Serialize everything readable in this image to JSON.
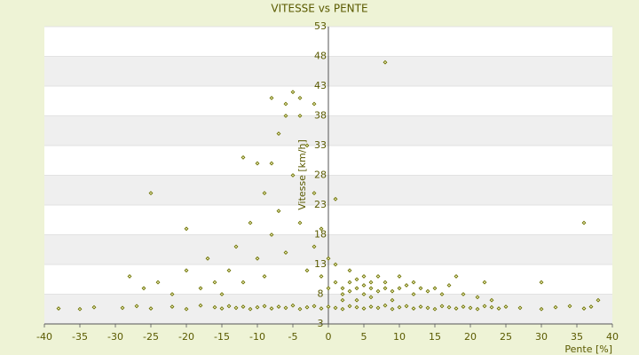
{
  "chart_data": {
    "type": "scatter",
    "title": "VITESSE vs PENTE",
    "x_label": "Pente [%]",
    "y_label": "Vitesse [km/h]",
    "xlim": [
      -40,
      40
    ],
    "ylim": [
      3,
      53
    ],
    "xticks": [
      -40,
      -35,
      -30,
      -25,
      -20,
      -15,
      -10,
      -5,
      0,
      5,
      10,
      15,
      20,
      25,
      30,
      35,
      40
    ],
    "yticks": [
      3,
      8,
      13,
      18,
      23,
      28,
      33,
      38,
      43,
      48,
      53
    ],
    "grid": true,
    "color": "#6b7000",
    "x": [
      -38,
      -35,
      -33,
      -29,
      -27,
      -25,
      -22,
      -20,
      -18,
      -16,
      -15,
      -14,
      -13,
      -12,
      -11,
      -10,
      -9,
      -8,
      -7,
      -6,
      -5,
      -4,
      -3,
      -2,
      -1,
      0,
      1,
      2,
      3,
      4,
      5,
      6,
      7,
      8,
      9,
      10,
      11,
      12,
      13,
      14,
      15,
      16,
      17,
      18,
      19,
      20,
      21,
      22,
      23,
      24,
      25,
      27,
      30,
      32,
      34,
      36,
      37,
      -28,
      -26,
      -24,
      -22,
      -20,
      -18,
      -17,
      -16,
      -15,
      -14,
      -13,
      -12,
      -11,
      -10,
      -9,
      -9,
      -8,
      -8,
      -7,
      -7,
      -6,
      -6,
      -5,
      -5,
      -4,
      -4,
      -3,
      -3,
      -2,
      -2,
      -1,
      -1,
      0,
      0,
      -25,
      -20,
      -12,
      -8,
      -6,
      -4,
      -10,
      -2,
      1,
      8,
      36,
      30,
      38,
      22,
      18,
      1,
      2,
      2,
      3,
      3,
      4,
      4,
      5,
      5,
      6,
      6,
      7,
      7,
      8,
      8,
      9,
      10,
      11,
      12,
      13,
      14,
      15,
      16,
      17,
      19,
      21,
      23,
      3,
      5,
      10,
      1,
      2,
      4,
      6,
      9,
      12
    ],
    "values": [
      5.6,
      5.5,
      5.8,
      5.7,
      6.0,
      5.6,
      5.9,
      5.5,
      6.1,
      5.8,
      5.6,
      6.0,
      5.7,
      5.9,
      5.5,
      5.8,
      6.0,
      5.6,
      5.9,
      5.7,
      6.1,
      5.5,
      5.8,
      6.0,
      5.6,
      5.9,
      5.7,
      5.5,
      6.0,
      5.8,
      5.6,
      5.9,
      5.7,
      6.1,
      5.5,
      5.8,
      6.0,
      5.6,
      5.9,
      5.7,
      5.5,
      6.0,
      5.8,
      5.6,
      5.9,
      5.7,
      5.5,
      6.0,
      5.8,
      5.6,
      5.9,
      5.7,
      5.5,
      5.8,
      6.0,
      5.6,
      5.9,
      11,
      9,
      10,
      8,
      12,
      9,
      14,
      10,
      8,
      12,
      16,
      10,
      20,
      14,
      25,
      11,
      18,
      30,
      22,
      35,
      15,
      40,
      28,
      42,
      38,
      20,
      33,
      12,
      25,
      16,
      19,
      11,
      14,
      9,
      25,
      19,
      31,
      41,
      38,
      41,
      30,
      40,
      24,
      47,
      20,
      10,
      7,
      10,
      11,
      10,
      9,
      8,
      10,
      8.5,
      9,
      10.5,
      8,
      9.5,
      9,
      10,
      8.5,
      11,
      9,
      10,
      8.5,
      9,
      9.5,
      8,
      9,
      8.5,
      9,
      8,
      9.5,
      8,
      7.5,
      7,
      12,
      11,
      11,
      13,
      7,
      7,
      7.5,
      7,
      10
    ]
  }
}
